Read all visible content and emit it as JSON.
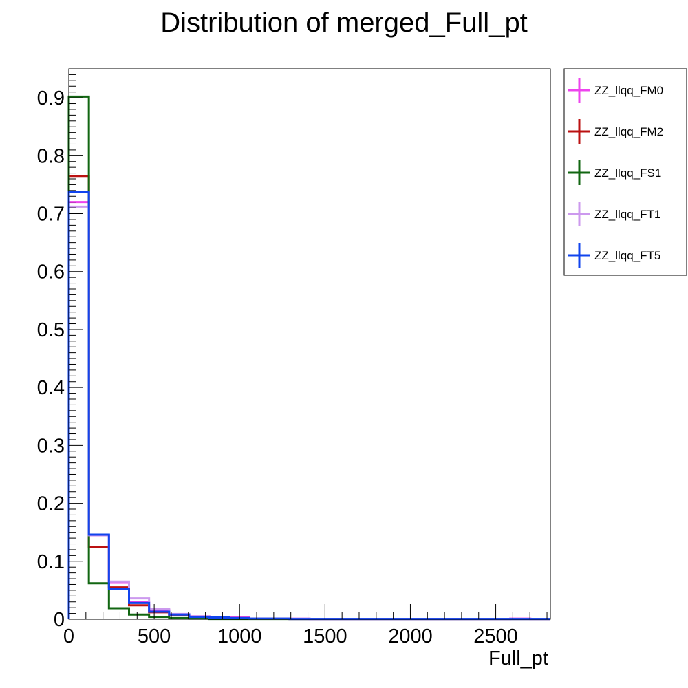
{
  "chart_data": {
    "type": "line",
    "title": "Distribution of merged_Full_pt",
    "xlabel": "Full_pt",
    "ylabel": "",
    "xlim": [
      0,
      2820
    ],
    "ylim": [
      0,
      0.95
    ],
    "bin_edges": [
      0,
      117.5,
      235,
      352.5,
      470,
      587.5,
      705,
      822.5,
      940,
      1057.5,
      1175,
      1292.5,
      1410,
      1527.5,
      1645,
      1762.5,
      1880,
      1997.5,
      2115,
      2232.5,
      2350,
      2467.5,
      2585,
      2702.5,
      2820
    ],
    "x_ticks": [
      0,
      500,
      1000,
      1500,
      2000,
      2500
    ],
    "x_tick_labels": [
      "0",
      "500",
      "1000",
      "1500",
      "2000",
      "2500"
    ],
    "y_ticks": [
      0,
      0.1,
      0.2,
      0.3,
      0.4,
      0.5,
      0.6,
      0.7,
      0.8,
      0.9
    ],
    "y_tick_labels": [
      "0",
      "0.1",
      "0.2",
      "0.3",
      "0.4",
      "0.5",
      "0.6",
      "0.7",
      "0.8",
      "0.9"
    ],
    "grid": false,
    "legend_position": "right",
    "series": [
      {
        "name": "ZZ_llqq_FM0",
        "color": "#ee44ee",
        "values": [
          0.72,
          0.145,
          0.063,
          0.03,
          0.016,
          0.008,
          0.005,
          0.003,
          0.003,
          0.001,
          0.001,
          0.001,
          0.0005,
          0.0005,
          0.0005,
          0.0005,
          0.0005,
          0.0005,
          0.0005,
          0.0005,
          0.0005,
          0.0005,
          0.001,
          0.0005
        ]
      },
      {
        "name": "ZZ_llqq_FM2",
        "color": "#bb1111",
        "values": [
          0.765,
          0.125,
          0.055,
          0.024,
          0.012,
          0.007,
          0.004,
          0.003,
          0.002,
          0.001,
          0.001,
          0.0005,
          0.0005,
          0.0005,
          0.0005,
          0.0005,
          0.0005,
          0.0005,
          0.0005,
          0.0005,
          0.0005,
          0.0005,
          0.0005,
          0.0005
        ]
      },
      {
        "name": "ZZ_llqq_FS1",
        "color": "#116611",
        "values": [
          0.902,
          0.062,
          0.019,
          0.008,
          0.004,
          0.002,
          0.001,
          0.0005,
          0.0005,
          0.0005,
          0.0005,
          0.0005,
          0.0005,
          0.0005,
          0.0005,
          0.0005,
          0.0005,
          0.0005,
          0.0005,
          0.0005,
          0.0005,
          0.0005,
          0.0005,
          0.0005
        ]
      },
      {
        "name": "ZZ_llqq_FT1",
        "color": "#cc99ee",
        "values": [
          0.712,
          0.145,
          0.065,
          0.036,
          0.018,
          0.009,
          0.005,
          0.003,
          0.002,
          0.001,
          0.001,
          0.001,
          0.0005,
          0.0005,
          0.0005,
          0.0005,
          0.0005,
          0.0005,
          0.0005,
          0.0005,
          0.0005,
          0.0005,
          0.0005,
          0.0005
        ]
      },
      {
        "name": "ZZ_llqq_FT5",
        "color": "#1144ee",
        "values": [
          0.737,
          0.146,
          0.052,
          0.028,
          0.013,
          0.008,
          0.004,
          0.003,
          0.002,
          0.001,
          0.001,
          0.0005,
          0.0005,
          0.0005,
          0.0005,
          0.0005,
          0.0005,
          0.0005,
          0.0005,
          0.0005,
          0.0005,
          0.0005,
          0.0005,
          0.0005
        ]
      }
    ]
  }
}
